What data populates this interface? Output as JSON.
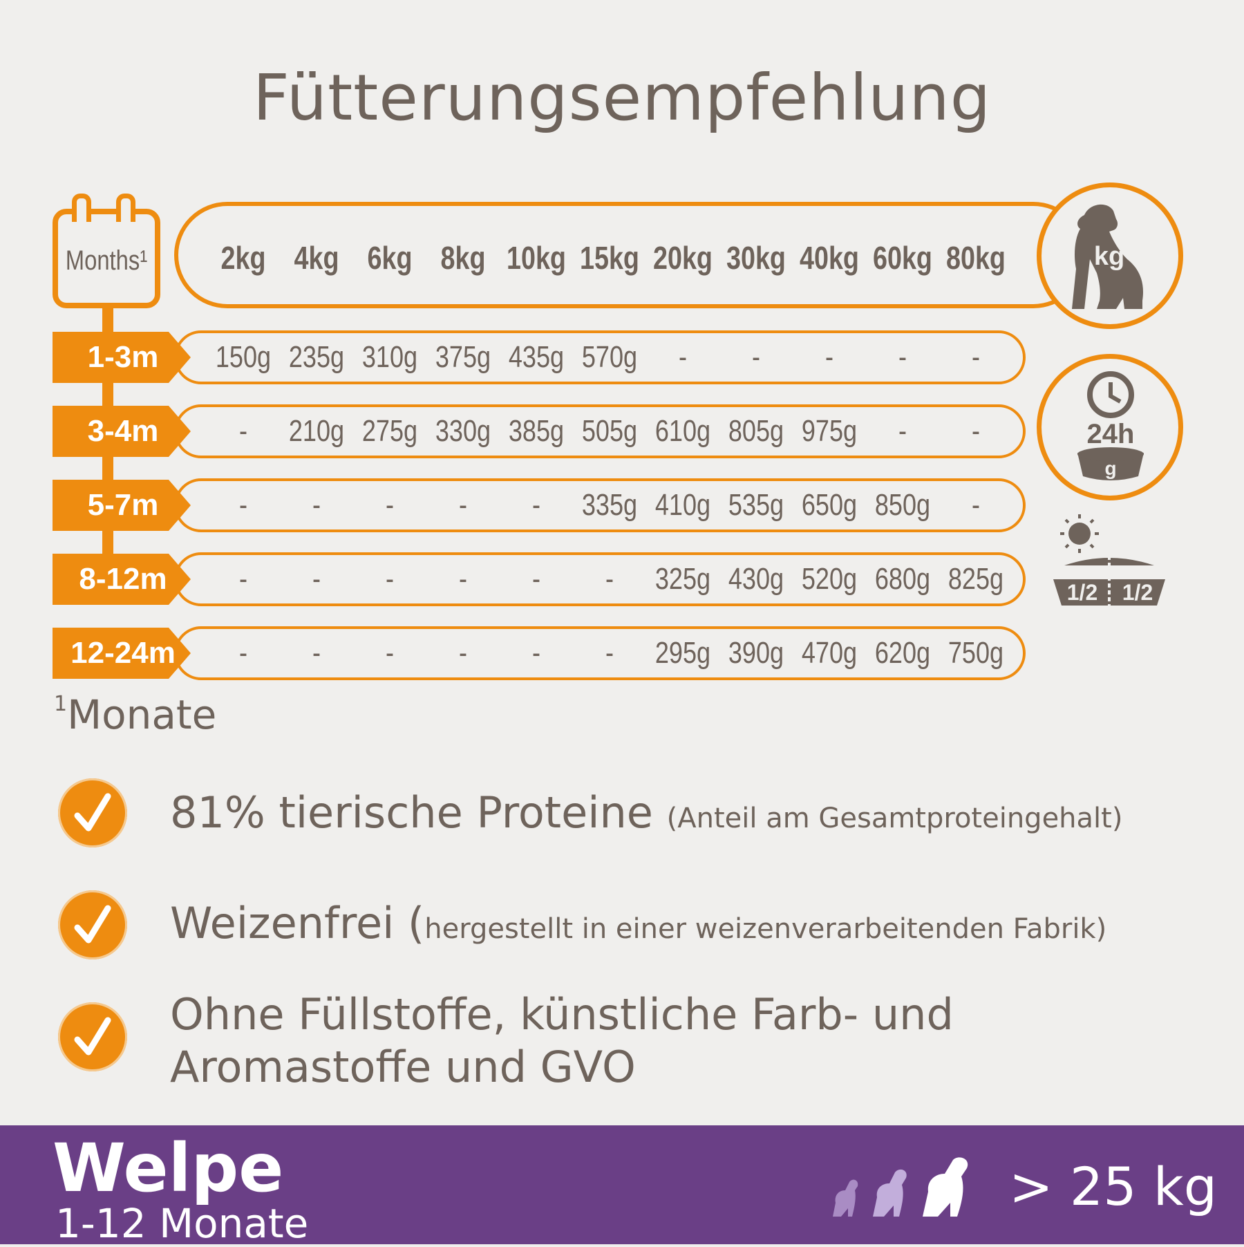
{
  "title": "Fütterungsempfehlung",
  "table": {
    "months_label": "Months¹",
    "weights": [
      "2kg",
      "4kg",
      "6kg",
      "8kg",
      "10kg",
      "15kg",
      "20kg",
      "30kg",
      "40kg",
      "60kg",
      "80kg"
    ],
    "kg_icon_label": "kg",
    "daily_icon_label": "24h",
    "bowl_label": "g",
    "split_labels": [
      "1/2",
      "1/2"
    ],
    "rows": [
      {
        "age": "1-3m",
        "values": [
          "150g",
          "235g",
          "310g",
          "375g",
          "435g",
          "570g",
          "-",
          "-",
          "-",
          "-",
          "-"
        ]
      },
      {
        "age": "3-4m",
        "values": [
          "-",
          "210g",
          "275g",
          "330g",
          "385g",
          "505g",
          "610g",
          "805g",
          "975g",
          "-",
          "-"
        ]
      },
      {
        "age": "5-7m",
        "values": [
          "-",
          "-",
          "-",
          "-",
          "-",
          "335g",
          "410g",
          "535g",
          "650g",
          "850g",
          "-"
        ]
      },
      {
        "age": "8-12m",
        "values": [
          "-",
          "-",
          "-",
          "-",
          "-",
          "-",
          "325g",
          "430g",
          "520g",
          "680g",
          "825g"
        ]
      },
      {
        "age": "12-24m",
        "values": [
          "-",
          "-",
          "-",
          "-",
          "-",
          "-",
          "295g",
          "390g",
          "470g",
          "620g",
          "750g"
        ]
      }
    ]
  },
  "footnote": {
    "mark": "1",
    "text": "Monate"
  },
  "features": [
    {
      "main": "81% tierische Proteine ",
      "note": "(Anteil am Gesamtproteingehalt)"
    },
    {
      "main": "Weizenfrei (",
      "note": "hergestellt in einer weizenverarbeitenden Fabrik)"
    },
    {
      "main": "Ohne Füllstoffe, künstliche Farb- und Aromastoffe und GVO",
      "note": ""
    }
  ],
  "footer": {
    "title": "Welpe",
    "subtitle": "1-12 Monate",
    "weight": "> 25 kg"
  },
  "colors": {
    "accent": "#ee8c10",
    "text": "#6e635b",
    "footer_bg": "#6a3f86",
    "background": "#f0efed"
  }
}
